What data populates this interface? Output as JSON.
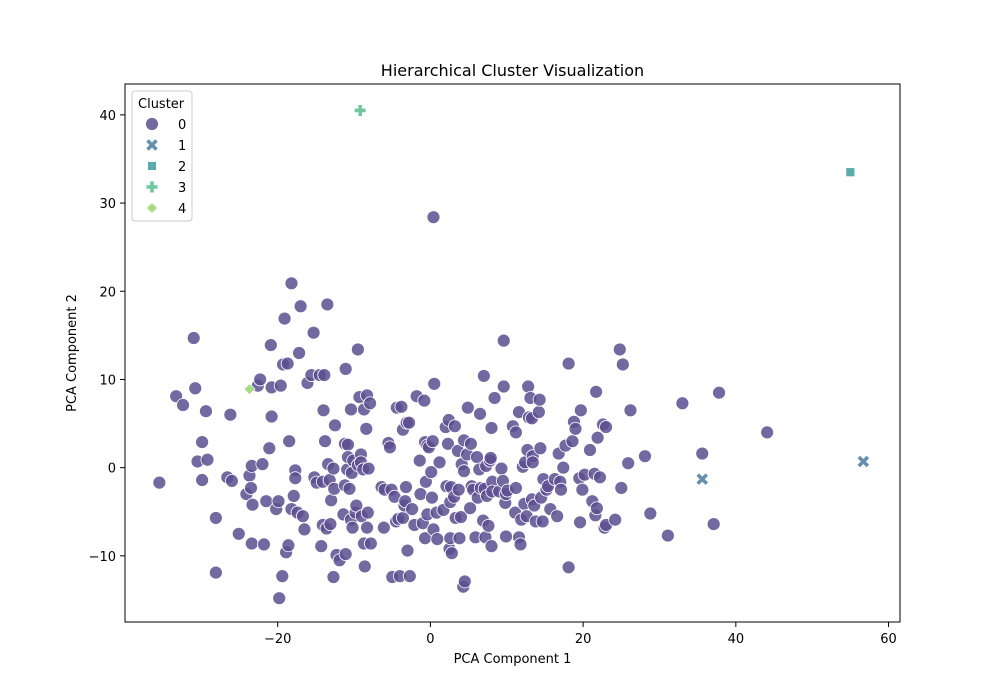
{
  "chart_data": {
    "type": "scatter",
    "title": "Hierarchical Cluster Visualization",
    "xlabel": "PCA Component 1",
    "ylabel": "PCA Component 2",
    "xlim": [
      -40,
      61.5
    ],
    "ylim": [
      -17.5,
      43.5
    ],
    "xticks": [
      -20,
      0,
      20,
      40,
      60
    ],
    "yticks": [
      -10,
      0,
      10,
      20,
      30,
      40
    ],
    "x_tick_labels": [
      "−20",
      "0",
      "20",
      "40",
      "60"
    ],
    "y_tick_labels": [
      "−10",
      "0",
      "10",
      "20",
      "30",
      "40"
    ],
    "grid": false,
    "legend": {
      "title": "Cluster",
      "placement": "top-left",
      "entries": [
        "0",
        "1",
        "2",
        "3",
        "4"
      ]
    },
    "series": [
      {
        "name": "0",
        "marker": "circle",
        "color": "#5b4f91",
        "points": [
          [
            -35.5,
            -1.7
          ],
          [
            -33.3,
            8.1
          ],
          [
            -32.4,
            7.1
          ],
          [
            -31,
            14.7
          ],
          [
            -30.8,
            9
          ],
          [
            -30.5,
            0.7
          ],
          [
            -29.9,
            -1.4
          ],
          [
            -29.9,
            2.9
          ],
          [
            -29.4,
            6.4
          ],
          [
            -29.2,
            0.9
          ],
          [
            -28.1,
            -5.7
          ],
          [
            -28.1,
            -11.9
          ],
          [
            -26.6,
            -1.1
          ],
          [
            -26.2,
            6
          ],
          [
            -26,
            -1.5
          ],
          [
            -25.1,
            -7.5
          ],
          [
            -24.1,
            -3
          ],
          [
            -23.7,
            -0.9
          ],
          [
            -23.5,
            -2.3
          ],
          [
            -23.4,
            0.2
          ],
          [
            -23.4,
            -8.6
          ],
          [
            -23.3,
            -4.2
          ],
          [
            -22.6,
            9.3
          ],
          [
            -22.3,
            10
          ],
          [
            -22,
            0.4
          ],
          [
            -21.8,
            -8.7
          ],
          [
            -21.5,
            -3.8
          ],
          [
            -21.1,
            2.2
          ],
          [
            -20.9,
            13.9
          ],
          [
            -20.8,
            5.8
          ],
          [
            -20.8,
            9.1
          ],
          [
            -20.2,
            -4.7
          ],
          [
            -19.9,
            -3.8
          ],
          [
            -19.8,
            -14.8
          ],
          [
            -19.6,
            9.3
          ],
          [
            -19.4,
            -12.3
          ],
          [
            -19.3,
            11.7
          ],
          [
            -19.1,
            16.9
          ],
          [
            -18.9,
            -9.6
          ],
          [
            -18.7,
            11.8
          ],
          [
            -18.6,
            -8.8
          ],
          [
            -18.5,
            3
          ],
          [
            -18.2,
            20.9
          ],
          [
            -18.2,
            -4.7
          ],
          [
            -17.9,
            -3.2
          ],
          [
            -17.7,
            -0.3
          ],
          [
            -17.7,
            -1.2
          ],
          [
            -17.4,
            -5.1
          ],
          [
            -17.2,
            13
          ],
          [
            -17,
            18.3
          ],
          [
            -16.7,
            -5.5
          ],
          [
            -16.5,
            -7
          ],
          [
            -16.1,
            9.6
          ],
          [
            -15.6,
            10.5
          ],
          [
            -15.3,
            15.3
          ],
          [
            -15.2,
            -1.1
          ],
          [
            -14.9,
            -1.7
          ],
          [
            -14.5,
            10.5
          ],
          [
            -14.3,
            -8.9
          ],
          [
            -14.1,
            -6.5
          ],
          [
            -14.1,
            -1.6
          ],
          [
            -14,
            6.5
          ],
          [
            -13.9,
            10.5
          ],
          [
            -13.8,
            3
          ],
          [
            -13.6,
            -6.9
          ],
          [
            -13.5,
            18.5
          ],
          [
            -13.4,
            0.4
          ],
          [
            -13.2,
            -1.4
          ],
          [
            -13.1,
            -6.4
          ],
          [
            -13,
            -3.7
          ],
          [
            -12.7,
            -0.1
          ],
          [
            -12.7,
            -12.4
          ],
          [
            -12.6,
            -2.4
          ],
          [
            -12.5,
            4.8
          ],
          [
            -12.3,
            -9.9
          ],
          [
            -11.9,
            -10.5
          ],
          [
            -11.4,
            -5.3
          ],
          [
            -11.2,
            2.7
          ],
          [
            -11.2,
            -2
          ],
          [
            -11.1,
            11.2
          ],
          [
            -11.1,
            -9.8
          ],
          [
            -10.9,
            -0.2
          ],
          [
            -10.8,
            2.6
          ],
          [
            -10.8,
            1.2
          ],
          [
            -10.6,
            -2.4
          ],
          [
            -10.4,
            -5.9
          ],
          [
            -10.4,
            6.6
          ],
          [
            -10.3,
            -0.6
          ],
          [
            -10.2,
            -6.8
          ],
          [
            -10.1,
            0.8
          ],
          [
            -9.8,
            -5.1
          ],
          [
            -9.7,
            -4.3
          ],
          [
            -9.5,
            13.4
          ],
          [
            -9.5,
            0.3
          ],
          [
            -9.3,
            8
          ],
          [
            -9.1,
            1.5
          ],
          [
            -9.1,
            0.6
          ],
          [
            -9,
            -5.5
          ],
          [
            -8.8,
            -0.2
          ],
          [
            -8.7,
            6.6
          ],
          [
            -8.7,
            -8.6
          ],
          [
            -8.6,
            -11.2
          ],
          [
            -8.4,
            4.4
          ],
          [
            -8.3,
            -6.8
          ],
          [
            -8.3,
            8.2
          ],
          [
            -8.2,
            -5.1
          ],
          [
            -8.1,
            -0.1
          ],
          [
            -7.9,
            7.3
          ],
          [
            -7.8,
            -8.6
          ],
          [
            -6.4,
            -2.2
          ],
          [
            -6.1,
            -6.8
          ],
          [
            -6,
            -2.5
          ],
          [
            -5.5,
            2.8
          ],
          [
            -5.3,
            2.3
          ],
          [
            -5.1,
            -2.5
          ],
          [
            -5,
            -12.4
          ],
          [
            -4.7,
            -3.3
          ],
          [
            -4.5,
            -6.1
          ],
          [
            -4.4,
            6.8
          ],
          [
            -4.2,
            -5.8
          ],
          [
            -4,
            -12.3
          ],
          [
            -3.8,
            6.9
          ],
          [
            -3.6,
            4.3
          ],
          [
            -3.6,
            -5.7
          ],
          [
            -3.4,
            -4.3
          ],
          [
            -3.3,
            -3.8
          ],
          [
            -3.2,
            -2.2
          ],
          [
            -3.1,
            5.1
          ],
          [
            -3,
            -9.4
          ],
          [
            -2.8,
            5.1
          ],
          [
            -2.7,
            -12.3
          ],
          [
            -2.4,
            -4.7
          ],
          [
            -2.1,
            -6.5
          ],
          [
            -1.8,
            8.1
          ],
          [
            -1.4,
            0.8
          ],
          [
            -1.3,
            -3
          ],
          [
            -1,
            -6.3
          ],
          [
            -0.8,
            7.6
          ],
          [
            -0.7,
            -8
          ],
          [
            -0.7,
            2.9
          ],
          [
            -0.6,
            -1.6
          ],
          [
            -0.4,
            2.5
          ],
          [
            -0.4,
            -5.3
          ],
          [
            -0.2,
            2.3
          ],
          [
            0.1,
            -0.5
          ],
          [
            0.2,
            -3.4
          ],
          [
            0.3,
            3
          ],
          [
            0.4,
            -7
          ],
          [
            0.4,
            28.4
          ],
          [
            0.5,
            9.5
          ],
          [
            0.8,
            -5.1
          ],
          [
            0.9,
            -8.1
          ],
          [
            1.2,
            0.6
          ],
          [
            1.7,
            -4.8
          ],
          [
            2,
            4.6
          ],
          [
            2.1,
            -2.1
          ],
          [
            2.3,
            2.7
          ],
          [
            2.4,
            5.4
          ],
          [
            2.5,
            -9.2
          ],
          [
            2.6,
            -3.9
          ],
          [
            2.6,
            -8
          ],
          [
            2.7,
            -2.2
          ],
          [
            2.8,
            -9.7
          ],
          [
            3.1,
            -3.3
          ],
          [
            3.2,
            4.7
          ],
          [
            3.3,
            -5.7
          ],
          [
            3.6,
            1.9
          ],
          [
            3.7,
            -2.5
          ],
          [
            3.8,
            -8
          ],
          [
            4,
            -5.6
          ],
          [
            4.1,
            0.4
          ],
          [
            4.3,
            -13.5
          ],
          [
            4.4,
            3.1
          ],
          [
            4.4,
            -0.4
          ],
          [
            4.5,
            -12.9
          ],
          [
            4.8,
            1.5
          ],
          [
            4.9,
            6.8
          ],
          [
            5.2,
            -4.6
          ],
          [
            5.3,
            2.7
          ],
          [
            5.4,
            -2.1
          ],
          [
            5.6,
            -2.5
          ],
          [
            5.9,
            -7.9
          ],
          [
            6.1,
            1.2
          ],
          [
            6.2,
            -3.4
          ],
          [
            6.4,
            -0.2
          ],
          [
            6.5,
            6.1
          ],
          [
            6.6,
            -2.3
          ],
          [
            6.9,
            -6
          ],
          [
            7,
            10.4
          ],
          [
            7.1,
            -2.4
          ],
          [
            7.2,
            -7.9
          ],
          [
            7.3,
            0.2
          ],
          [
            7.4,
            -3.2
          ],
          [
            7.6,
            -6.6
          ],
          [
            7.8,
            0.8
          ],
          [
            7.9,
            1.1
          ],
          [
            8,
            4.5
          ],
          [
            8.1,
            -1.6
          ],
          [
            8,
            -8.9
          ],
          [
            8.1,
            -2.7
          ],
          [
            8.4,
            7.9
          ],
          [
            9,
            -2.7
          ],
          [
            9.3,
            -0.1
          ],
          [
            9.5,
            -1.5
          ],
          [
            9.6,
            14.4
          ],
          [
            9.6,
            9.2
          ],
          [
            9.8,
            -4
          ],
          [
            9.9,
            -3
          ],
          [
            9.9,
            -7.8
          ],
          [
            10.1,
            -2.6
          ],
          [
            10.8,
            4.7
          ],
          [
            11.1,
            -5.1
          ],
          [
            11.2,
            4
          ],
          [
            11.2,
            -2.3
          ],
          [
            11.6,
            -7.9
          ],
          [
            11.6,
            6.3
          ],
          [
            11.8,
            -8.7
          ],
          [
            11.9,
            -5.9
          ],
          [
            12.1,
            0.1
          ],
          [
            12.3,
            -4.1
          ],
          [
            12.4,
            0.6
          ],
          [
            12.6,
            -5.5
          ],
          [
            12.7,
            2
          ],
          [
            12.8,
            9.2
          ],
          [
            12.9,
            5.7
          ],
          [
            13.1,
            7.9
          ],
          [
            13.3,
            5.6
          ],
          [
            13.3,
            -3.6
          ],
          [
            13.4,
            1.3
          ],
          [
            13.4,
            0.6
          ],
          [
            13.6,
            -4.3
          ],
          [
            13.8,
            -6.1
          ],
          [
            14.2,
            6.3
          ],
          [
            14.3,
            7.7
          ],
          [
            14.4,
            2.2
          ],
          [
            14.5,
            -3.4
          ],
          [
            14.7,
            -6.1
          ],
          [
            14.8,
            -1.3
          ],
          [
            15.2,
            -2.5
          ],
          [
            15.4,
            -2.1
          ],
          [
            15.7,
            -4.7
          ],
          [
            16.3,
            -1.3
          ],
          [
            16.6,
            -5.5
          ],
          [
            16.8,
            1.6
          ],
          [
            17,
            -1.6
          ],
          [
            17.1,
            -2.5
          ],
          [
            17.4,
            0
          ],
          [
            17.7,
            2.5
          ],
          [
            18.1,
            11.8
          ],
          [
            18.1,
            -11.3
          ],
          [
            18.6,
            3
          ],
          [
            18.8,
            5.2
          ],
          [
            19,
            4.4
          ],
          [
            19.5,
            -1.2
          ],
          [
            19.6,
            -6.2
          ],
          [
            19.7,
            6.5
          ],
          [
            19.9,
            -2.5
          ],
          [
            20.2,
            -0.8
          ],
          [
            20.9,
            2
          ],
          [
            21.2,
            -3.8
          ],
          [
            21.5,
            -0.7
          ],
          [
            21.6,
            -5.4
          ],
          [
            21.7,
            8.6
          ],
          [
            21.8,
            -4.6
          ],
          [
            21.9,
            3.4
          ],
          [
            22.2,
            -1.1
          ],
          [
            22.6,
            4.9
          ],
          [
            22.8,
            -6.8
          ],
          [
            23,
            4.6
          ],
          [
            23,
            -6.5
          ],
          [
            24.2,
            -5.9
          ],
          [
            24.8,
            13.4
          ],
          [
            25,
            -2.3
          ],
          [
            25.2,
            11.7
          ],
          [
            25.9,
            0.5
          ],
          [
            26.2,
            6.5
          ],
          [
            28.1,
            1.3
          ],
          [
            28.8,
            -5.2
          ],
          [
            31.1,
            -7.7
          ],
          [
            33,
            7.3
          ],
          [
            35.6,
            1.6
          ],
          [
            37.1,
            -6.4
          ],
          [
            37.8,
            8.5
          ],
          [
            44.1,
            4
          ]
        ]
      },
      {
        "name": "1",
        "marker": "x",
        "color": "#4a7ba0",
        "points": [
          [
            35.6,
            -1.3
          ],
          [
            56.7,
            0.7
          ]
        ]
      },
      {
        "name": "2",
        "marker": "square",
        "color": "#3e9e98",
        "points": [
          [
            55,
            33.5
          ]
        ]
      },
      {
        "name": "3",
        "marker": "plus",
        "color": "#55c18c",
        "points": [
          [
            -9.2,
            40.5
          ]
        ]
      },
      {
        "name": "4",
        "marker": "diamond",
        "color": "#95d56b",
        "points": [
          [
            -23.7,
            8.9
          ]
        ]
      }
    ]
  }
}
